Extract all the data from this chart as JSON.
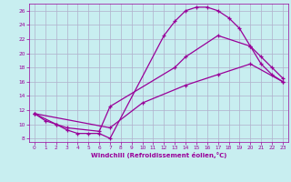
{
  "xlabel": "Windchill (Refroidissement éolien,°C)",
  "background_color": "#c8eef0",
  "grid_color": "#b0b0cc",
  "line_color": "#990099",
  "xlim": [
    -0.5,
    23.5
  ],
  "ylim": [
    7.5,
    27.0
  ],
  "xticks": [
    0,
    1,
    2,
    3,
    4,
    5,
    6,
    7,
    8,
    9,
    10,
    11,
    12,
    13,
    14,
    15,
    16,
    17,
    18,
    19,
    20,
    21,
    22,
    23
  ],
  "yticks": [
    8,
    10,
    12,
    14,
    16,
    18,
    20,
    22,
    24,
    26
  ],
  "curve1_x": [
    0,
    1,
    2,
    3,
    4,
    5,
    6,
    7,
    12,
    13,
    14,
    15,
    16,
    17,
    18,
    19,
    20,
    21,
    22,
    23
  ],
  "curve1_y": [
    11.5,
    10.5,
    10.0,
    9.2,
    8.7,
    8.7,
    8.7,
    8.0,
    22.5,
    24.5,
    26.0,
    26.5,
    26.5,
    26.0,
    25.0,
    23.5,
    21.0,
    18.5,
    17.0,
    16.0
  ],
  "curve2_x": [
    0,
    2,
    3,
    6,
    7,
    13,
    14,
    17,
    20,
    21,
    22,
    23
  ],
  "curve2_y": [
    11.5,
    10.0,
    9.5,
    9.0,
    12.5,
    18.0,
    19.5,
    22.5,
    21.0,
    19.5,
    18.0,
    16.5
  ],
  "curve3_x": [
    0,
    7,
    10,
    14,
    17,
    20,
    23
  ],
  "curve3_y": [
    11.5,
    9.5,
    13.0,
    15.5,
    17.0,
    18.5,
    16.0
  ],
  "marker": "+",
  "marker_size": 3,
  "line_width": 0.9
}
